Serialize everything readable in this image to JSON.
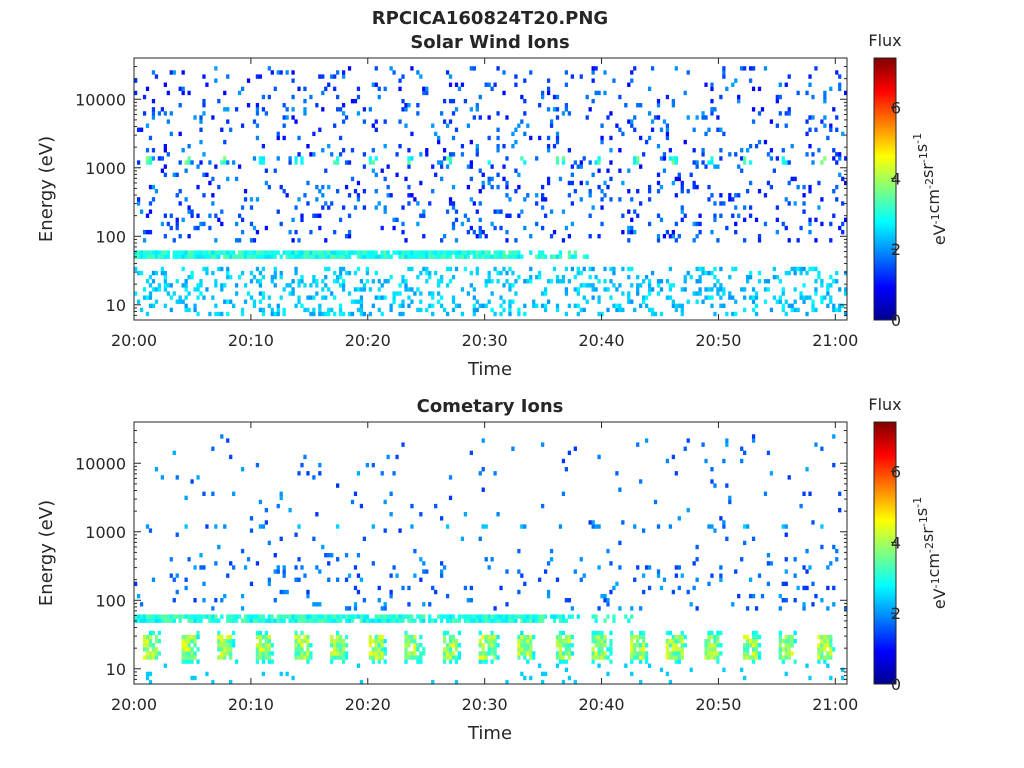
{
  "figure": {
    "title": "RPCICA160824T20.PNG"
  },
  "colorbar": {
    "title": "Flux",
    "label_parts": [
      "eV",
      "-1",
      "cm",
      "-2",
      "sr",
      "-1",
      "s",
      "-1"
    ],
    "range": [
      0,
      7.4
    ],
    "ticks": [
      "0",
      "2",
      "4",
      "6"
    ],
    "colormap": "jet"
  },
  "chart_data": [
    {
      "type": "heatmap",
      "title": "Solar Wind Ions",
      "xlabel": "Time",
      "ylabel": "Energy (eV)",
      "x_ticks": [
        "20:00",
        "20:10",
        "20:20",
        "20:30",
        "20:40",
        "20:50",
        "21:00"
      ],
      "x_range_minutes": [
        0,
        61
      ],
      "y_scale": "log",
      "y_ticks": [
        "10",
        "100",
        "1000",
        "10000"
      ],
      "y_range": [
        6,
        40000
      ],
      "features": {
        "bright_band": {
          "energy": 55,
          "flux": 3.0,
          "start_min": 0,
          "end_min": 33
        },
        "periodic_peaks": {
          "energy": 1250,
          "flux": 3.2,
          "interval_min": 3.2
        },
        "low_energy_flux": 2.5,
        "background_flux": 1.5
      }
    },
    {
      "type": "heatmap",
      "title": "Cometary Ions",
      "xlabel": "Time",
      "ylabel": "Energy (eV)",
      "x_ticks": [
        "20:00",
        "20:10",
        "20:20",
        "20:30",
        "20:40",
        "20:50",
        "21:00"
      ],
      "x_range_minutes": [
        0,
        61
      ],
      "y_scale": "log",
      "y_ticks": [
        "10",
        "100",
        "1000",
        "10000"
      ],
      "y_range": [
        6,
        40000
      ],
      "features": {
        "bright_band": {
          "energy": 55,
          "flux": 3.0,
          "start_min": 0,
          "end_min": 35
        },
        "periodic_bursts": {
          "energy_low": 14,
          "energy_high": 30,
          "flux": 3.8,
          "interval_min": 3.2
        },
        "sparse_flux": 1.8
      }
    }
  ]
}
